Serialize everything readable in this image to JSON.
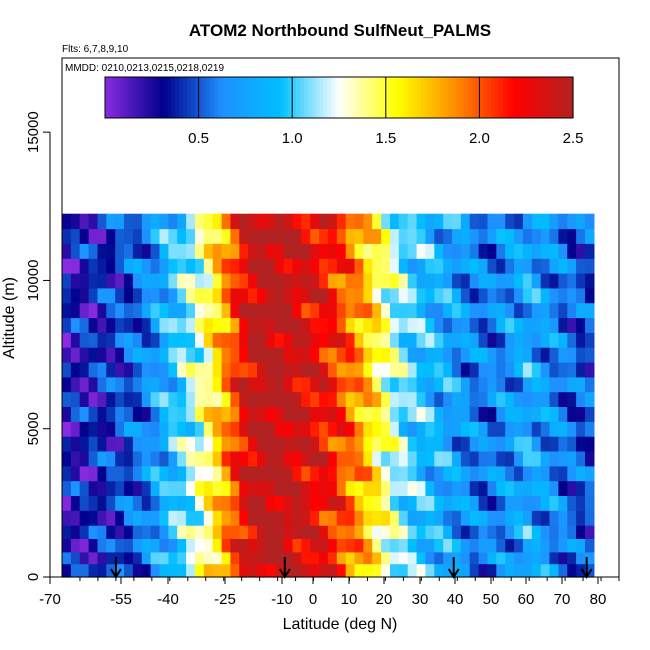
{
  "chart_data": {
    "type": "heatmap",
    "title": "ATOM2 Northbound SulfNeut_PALMS",
    "subtitle": "Flts: 6,7,8,9,10",
    "annotation": "MMDD: 0210,0213,0215,0218,0219",
    "xlabel": "Latitude (deg N)",
    "ylabel": "Altitude (m)",
    "xlim": [
      -70,
      85
    ],
    "ylim": [
      0,
      17500
    ],
    "x_tick_labels": [
      "-70",
      "-55",
      "-40",
      "-25",
      "-10",
      "0",
      "10",
      "20",
      "30",
      "40",
      "50",
      "60",
      "70",
      "80"
    ],
    "y_tick_labels": [
      "0",
      "5000",
      "10000",
      "15000"
    ],
    "colorbar": {
      "range": [
        0,
        2.5
      ],
      "tick_labels": [
        "0.5",
        "1.0",
        "1.5",
        "2.0",
        "2.5"
      ],
      "colors": [
        "#8a2be2",
        "#00008b",
        "#1e90ff",
        "#00bfff",
        "#ffffff",
        "#ffff00",
        "#ff8c00",
        "#ff0000",
        "#b22222"
      ]
    },
    "arrows_latitude": [
      -55,
      -8,
      39,
      76
    ],
    "altitude_levels": [
      300,
      700,
      1100,
      1550,
      2000,
      2500,
      3000,
      3500,
      4000,
      4500,
      5000,
      5500,
      6000,
      6500,
      7000,
      7500,
      8000,
      8500,
      9000,
      9500,
      10000,
      10500,
      11000,
      11500,
      12000
    ],
    "profile_lat_range": [
      -70,
      78
    ],
    "profile_values": [
      0.3,
      0.3,
      0.35,
      0.4,
      0.5,
      0.6,
      0.8,
      1.0,
      1.2,
      1.5,
      1.9,
      2.3,
      2.5,
      2.5,
      2.4,
      2.3,
      2.2,
      2.0,
      1.8,
      1.5,
      1.2,
      1.0,
      0.9,
      0.8,
      0.7,
      0.6,
      0.6,
      0.7,
      0.8,
      0.7,
      0.6,
      0.5,
      0.5
    ]
  }
}
